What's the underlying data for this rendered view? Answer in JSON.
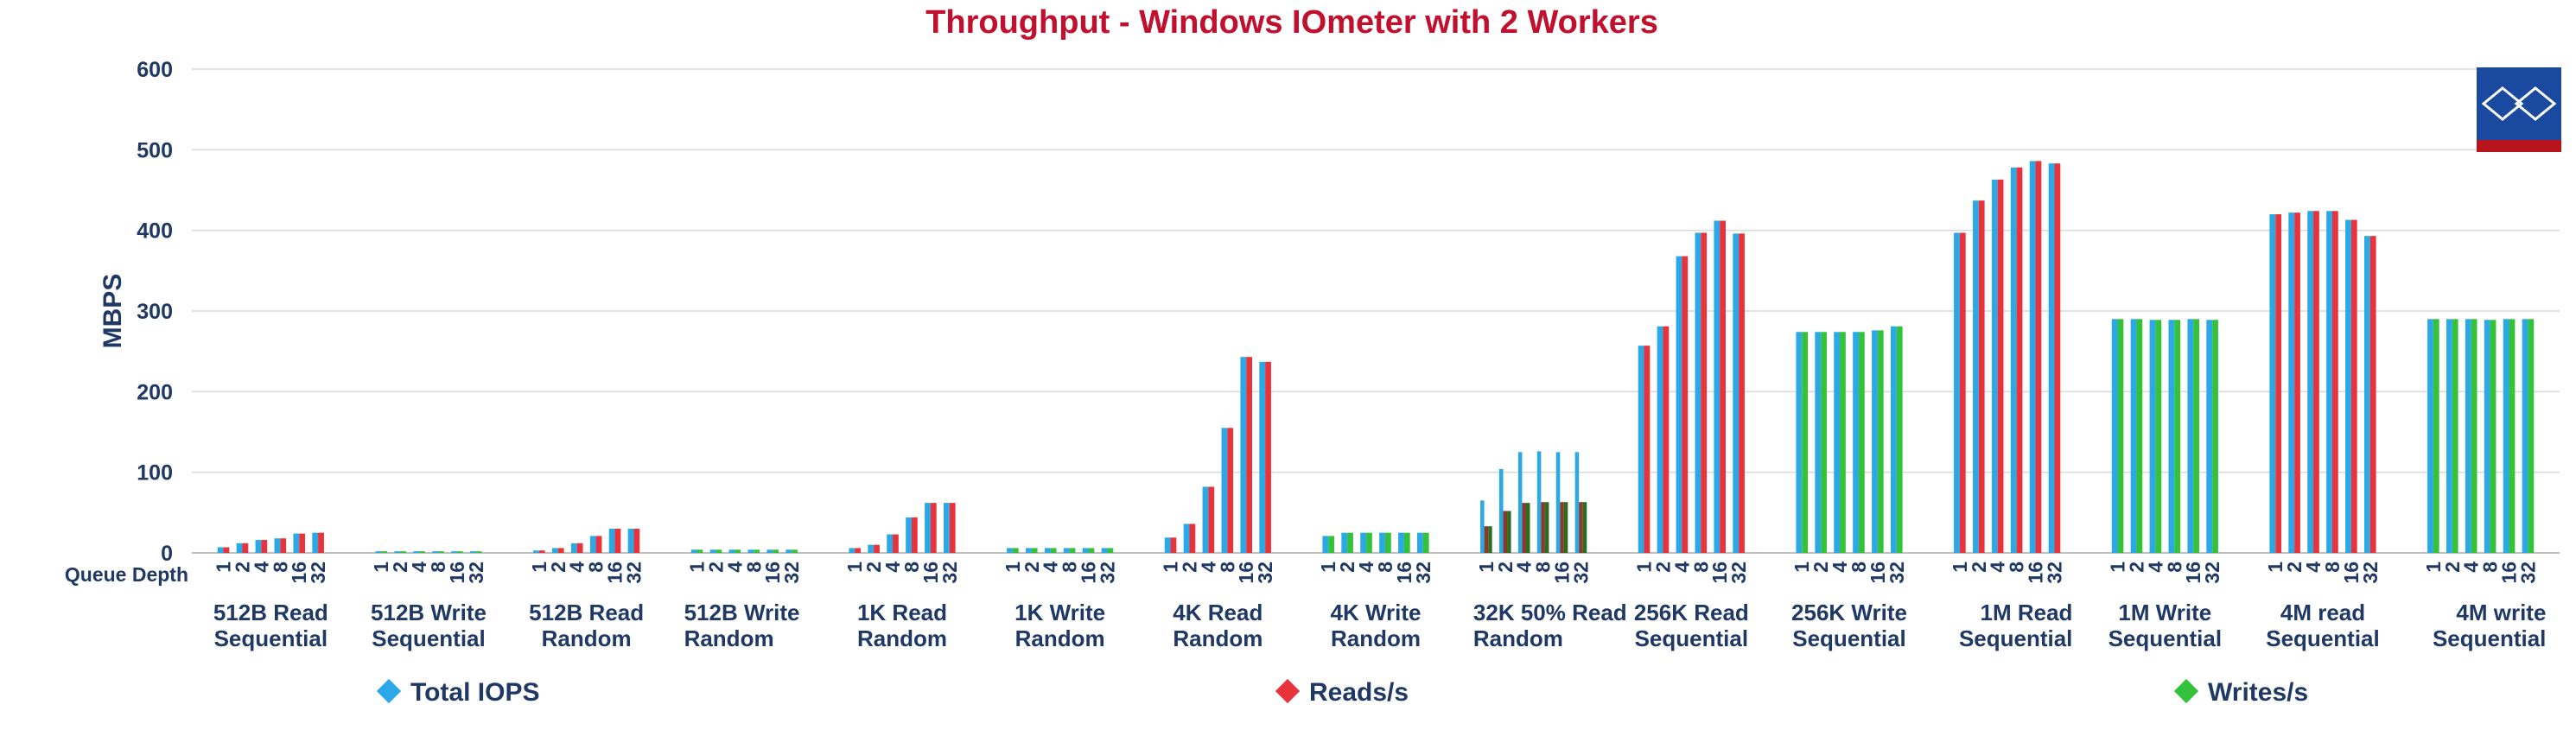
{
  "chart_data": {
    "type": "bar",
    "title": "Throughput - Windows IOmeter with 2 Workers",
    "ylabel": "MBPS",
    "xlabel": "Queue Depth",
    "ylim": [
      0,
      600
    ],
    "yticks": [
      "0",
      "100",
      "200",
      "300",
      "400",
      "500",
      "600"
    ],
    "grid": true,
    "legend_position": "bottom",
    "queue_depths": [
      "1",
      "2",
      "4",
      "8",
      "16",
      "32"
    ],
    "colors": {
      "title": "#c0102e",
      "axis_text": "#1f3864",
      "grid": "#d9d9d9",
      "total": "#2ba8e6",
      "reads": "#e8323c",
      "writes": "#35c23a",
      "mixed_reads": "#8a3a2a",
      "mixed_writes": "#2f6b1e"
    },
    "legend": [
      {
        "name": "Total IOPS",
        "color": "#2ba8e6"
      },
      {
        "name": "Reads/s",
        "color": "#e8323c"
      },
      {
        "name": "Writes/s",
        "color": "#35c23a"
      }
    ],
    "groups": [
      {
        "label": [
          "512B Read",
          "Sequential"
        ],
        "align": "center",
        "series": [
          {
            "name": "Total IOPS",
            "values": [
              7,
              12,
              16,
              18,
              24,
              25
            ]
          },
          {
            "name": "Reads/s",
            "values": [
              7,
              12,
              16,
              18,
              24,
              25
            ]
          }
        ]
      },
      {
        "label": [
          "512B Write",
          "Sequential"
        ],
        "align": "center",
        "series": [
          {
            "name": "Total IOPS",
            "values": [
              2,
              2,
              2,
              2,
              2,
              2
            ]
          },
          {
            "name": "Writes/s",
            "values": [
              2,
              2,
              2,
              2,
              2,
              2
            ]
          }
        ]
      },
      {
        "label": [
          "512B Read",
          "Random"
        ],
        "align": "center",
        "series": [
          {
            "name": "Total IOPS",
            "values": [
              3,
              6,
              12,
              21,
              30,
              30
            ]
          },
          {
            "name": "Reads/s",
            "values": [
              3,
              6,
              12,
              21,
              30,
              30
            ]
          }
        ]
      },
      {
        "label": [
          "512B Write",
          "Random"
        ],
        "align": "left",
        "series": [
          {
            "name": "Total IOPS",
            "values": [
              4,
              4,
              4,
              4,
              4,
              4
            ]
          },
          {
            "name": "Writes/s",
            "values": [
              4,
              4,
              4,
              4,
              4,
              4
            ]
          }
        ]
      },
      {
        "label": [
          "1K Read",
          "Random"
        ],
        "align": "center",
        "series": [
          {
            "name": "Total IOPS",
            "values": [
              6,
              10,
              23,
              44,
              62,
              62
            ]
          },
          {
            "name": "Reads/s",
            "values": [
              6,
              10,
              23,
              44,
              62,
              62
            ]
          }
        ]
      },
      {
        "label": [
          "1K Write",
          "Random"
        ],
        "align": "center",
        "series": [
          {
            "name": "Total IOPS",
            "values": [
              6,
              6,
              6,
              6,
              6,
              6
            ]
          },
          {
            "name": "Writes/s",
            "values": [
              6,
              6,
              6,
              6,
              6,
              6
            ]
          }
        ]
      },
      {
        "label": [
          "4K Read",
          "Random"
        ],
        "align": "center",
        "series": [
          {
            "name": "Total IOPS",
            "values": [
              19,
              36,
              82,
              155,
              243,
              237
            ]
          },
          {
            "name": "Reads/s",
            "values": [
              19,
              36,
              82,
              155,
              243,
              237
            ]
          }
        ]
      },
      {
        "label": [
          "4K Write",
          "Random"
        ],
        "align": "center",
        "series": [
          {
            "name": "Total IOPS",
            "values": [
              21,
              25,
              25,
              25,
              25,
              25
            ]
          },
          {
            "name": "Writes/s",
            "values": [
              21,
              25,
              25,
              25,
              25,
              25
            ]
          }
        ]
      },
      {
        "label": [
          "32K 50% Read",
          "Random"
        ],
        "align": "left",
        "series": [
          {
            "name": "Total IOPS",
            "values": [
              65,
              104,
              125,
              126,
              125,
              125
            ]
          },
          {
            "name": "Reads/s",
            "values": [
              33,
              52,
              62,
              63,
              63,
              63
            ]
          },
          {
            "name": "Writes/s",
            "values": [
              33,
              52,
              62,
              63,
              63,
              63
            ]
          }
        ]
      },
      {
        "label": [
          "256K Read",
          "Sequential"
        ],
        "align": "center",
        "series": [
          {
            "name": "Total IOPS",
            "values": [
              257,
              281,
              368,
              397,
              412,
              396
            ]
          },
          {
            "name": "Reads/s",
            "values": [
              257,
              281,
              368,
              397,
              412,
              396
            ]
          }
        ]
      },
      {
        "label": [
          "256K Write",
          "Sequential"
        ],
        "align": "center",
        "series": [
          {
            "name": "Total IOPS",
            "values": [
              274,
              274,
              274,
              274,
              276,
              281
            ]
          },
          {
            "name": "Writes/s",
            "values": [
              274,
              274,
              274,
              274,
              276,
              281
            ]
          }
        ]
      },
      {
        "label": [
          "1M Read",
          "Sequential"
        ],
        "align": "right",
        "series": [
          {
            "name": "Total IOPS",
            "values": [
              397,
              437,
              463,
              478,
              486,
              483
            ]
          },
          {
            "name": "Reads/s",
            "values": [
              397,
              437,
              463,
              478,
              486,
              483
            ]
          }
        ]
      },
      {
        "label": [
          "1M Write",
          "Sequential"
        ],
        "align": "center",
        "series": [
          {
            "name": "Total IOPS",
            "values": [
              290,
              290,
              289,
              289,
              290,
              289
            ]
          },
          {
            "name": "Writes/s",
            "values": [
              290,
              290,
              289,
              289,
              290,
              289
            ]
          }
        ]
      },
      {
        "label": [
          "4M read",
          "Sequential"
        ],
        "align": "center",
        "series": [
          {
            "name": "Total IOPS",
            "values": [
              420,
              422,
              424,
              424,
              413,
              393
            ]
          },
          {
            "name": "Reads/s",
            "values": [
              420,
              422,
              424,
              424,
              413,
              393
            ]
          }
        ]
      },
      {
        "label": [
          "4M write",
          "Sequential"
        ],
        "align": "right",
        "series": [
          {
            "name": "Total IOPS",
            "values": [
              290,
              290,
              290,
              289,
              290,
              290
            ]
          },
          {
            "name": "Writes/s",
            "values": [
              290,
              290,
              290,
              289,
              290,
              290
            ]
          }
        ]
      }
    ]
  }
}
